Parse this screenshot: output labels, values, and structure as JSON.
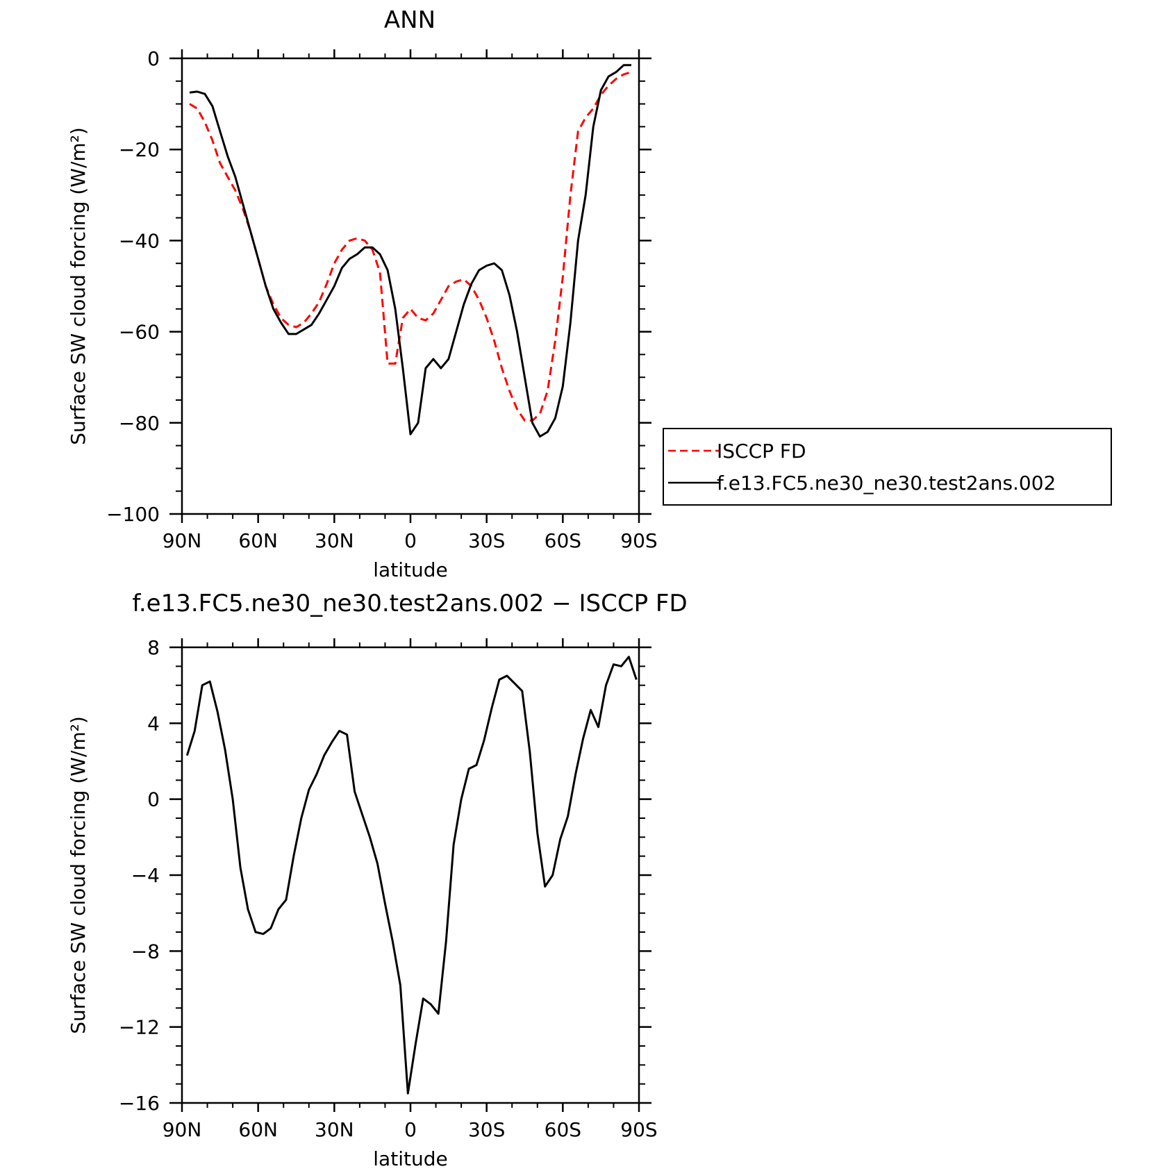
{
  "chart_data": [
    {
      "type": "line",
      "title": "ANN",
      "xlabel": "latitude",
      "ylabel": "Surface SW cloud forcing (W/m²)",
      "xlim": [
        90,
        -90
      ],
      "ylim": [
        -100,
        0
      ],
      "xticks": [
        90,
        60,
        30,
        0,
        -30,
        -60,
        -90
      ],
      "xtick_labels": [
        "90N",
        "60N",
        "30N",
        "0",
        "30S",
        "60S",
        "90S"
      ],
      "yticks": [
        0,
        -20,
        -40,
        -60,
        -80,
        -100
      ],
      "ytick_labels": [
        "0",
        "−20",
        "−40",
        "−60",
        "−80",
        "−100"
      ],
      "legend_position": "right-middle",
      "series": [
        {
          "name": "ISCCP FD",
          "color": "#ff0000",
          "style": "dashed",
          "x": [
            87,
            84,
            81,
            78,
            75,
            72,
            69,
            66,
            63,
            60,
            57,
            54,
            51,
            48,
            45,
            42,
            39,
            36,
            33,
            30,
            27,
            24,
            21,
            18,
            15,
            12,
            9,
            6,
            3,
            0,
            -3,
            -6,
            -9,
            -12,
            -15,
            -18,
            -21,
            -24,
            -27,
            -30,
            -33,
            -36,
            -39,
            -42,
            -45,
            -48,
            -51,
            -54,
            -57,
            -60,
            -63,
            -66,
            -69,
            -72,
            -75,
            -78,
            -81,
            -84,
            -87
          ],
          "values": [
            -10,
            -11,
            -14,
            -18,
            -23,
            -26,
            -29,
            -33,
            -38,
            -44,
            -50,
            -54,
            -57,
            -58.5,
            -59,
            -58,
            -56,
            -53.5,
            -49.5,
            -45,
            -42,
            -40,
            -39.5,
            -40,
            -42,
            -47,
            -67,
            -67,
            -57,
            -55,
            -57,
            -57.5,
            -56,
            -53,
            -50,
            -49,
            -48.5,
            -50,
            -53,
            -57,
            -62,
            -68,
            -73,
            -77,
            -79.5,
            -79.5,
            -78,
            -73,
            -62,
            -48,
            -30,
            -16,
            -13,
            -11,
            -8,
            -6,
            -4.5,
            -3.5,
            -3
          ]
        },
        {
          "name": "f.e13.FC5.ne30_ne30.test2ans.002",
          "color": "#000000",
          "style": "solid",
          "x": [
            87,
            84,
            81,
            78,
            75,
            72,
            69,
            66,
            63,
            60,
            57,
            54,
            51,
            48,
            45,
            42,
            39,
            36,
            33,
            30,
            27,
            24,
            21,
            18,
            15,
            12,
            9,
            6,
            3,
            0,
            -3,
            -6,
            -9,
            -12,
            -15,
            -18,
            -21,
            -24,
            -27,
            -30,
            -33,
            -36,
            -39,
            -42,
            -45,
            -48,
            -51,
            -54,
            -57,
            -60,
            -63,
            -66,
            -69,
            -72,
            -75,
            -78,
            -81,
            -84,
            -87
          ],
          "values": [
            -7.5,
            -7.3,
            -7.8,
            -10.5,
            -16,
            -21.5,
            -26,
            -32,
            -38,
            -44,
            -50,
            -55,
            -58,
            -60.5,
            -60.5,
            -59.5,
            -58.5,
            -56,
            -53,
            -50,
            -46,
            -44,
            -43,
            -41.5,
            -41.5,
            -43,
            -46.5,
            -55,
            -68,
            -82.5,
            -80,
            -68,
            -66,
            -68,
            -66,
            -60,
            -54,
            -49.5,
            -46.5,
            -45.5,
            -45,
            -46.5,
            -52,
            -60,
            -70,
            -80,
            -83,
            -82,
            -79,
            -72,
            -58,
            -40,
            -30,
            -15,
            -7,
            -4,
            -3,
            -1.5,
            -1.5
          ]
        }
      ]
    },
    {
      "type": "line",
      "title": "f.e13.FC5.ne30_ne30.test2ans.002 − ISCCP FD",
      "xlabel": "latitude",
      "ylabel": "Surface SW cloud forcing (W/m²)",
      "xlim": [
        90,
        -90
      ],
      "ylim": [
        -16,
        8
      ],
      "xticks": [
        90,
        60,
        30,
        0,
        -30,
        -60,
        -90
      ],
      "xtick_labels": [
        "90N",
        "60N",
        "30N",
        "0",
        "30S",
        "60S",
        "90S"
      ],
      "yticks": [
        8,
        4,
        0,
        -4,
        -8,
        -12,
        -16
      ],
      "ytick_labels": [
        "8",
        "4",
        "0",
        "−4",
        "−8",
        "−12",
        "−16"
      ],
      "series": [
        {
          "color": "#000000",
          "style": "solid",
          "x": [
            88,
            85,
            82,
            79,
            76,
            73,
            70,
            67,
            64,
            61,
            58,
            55,
            52,
            49,
            46,
            43,
            40,
            37,
            34,
            31,
            28,
            25,
            22,
            19,
            16,
            13,
            10,
            7,
            4,
            1,
            -2,
            -5,
            -8,
            -11,
            -14,
            -17,
            -20,
            -23,
            -26,
            -29,
            -32,
            -35,
            -38,
            -41,
            -44,
            -47,
            -50,
            -53,
            -56,
            -59,
            -62,
            -65,
            -68,
            -71,
            -74,
            -77,
            -80,
            -83,
            -86,
            -89
          ],
          "values": [
            2.3,
            3.6,
            6.0,
            6.2,
            4.6,
            2.6,
            0,
            -3.6,
            -5.8,
            -7.0,
            -7.1,
            -6.8,
            -5.8,
            -5.3,
            -3.0,
            -1.0,
            0.5,
            1.3,
            2.3,
            3.0,
            3.6,
            3.4,
            0.4,
            -0.8,
            -2.0,
            -3.4,
            -5.5,
            -7.5,
            -9.8,
            -15.5,
            -12.9,
            -10.5,
            -10.8,
            -11.3,
            -7.5,
            -2.4,
            0.0,
            1.6,
            1.8,
            3.1,
            4.8,
            6.3,
            6.5,
            6.1,
            5.7,
            2.5,
            -1.8,
            -4.6,
            -4.0,
            -2.1,
            -0.9,
            1.3,
            3.2,
            4.7,
            3.8,
            6.0,
            7.1,
            7.0,
            7.5,
            6.3
          ]
        }
      ]
    }
  ]
}
